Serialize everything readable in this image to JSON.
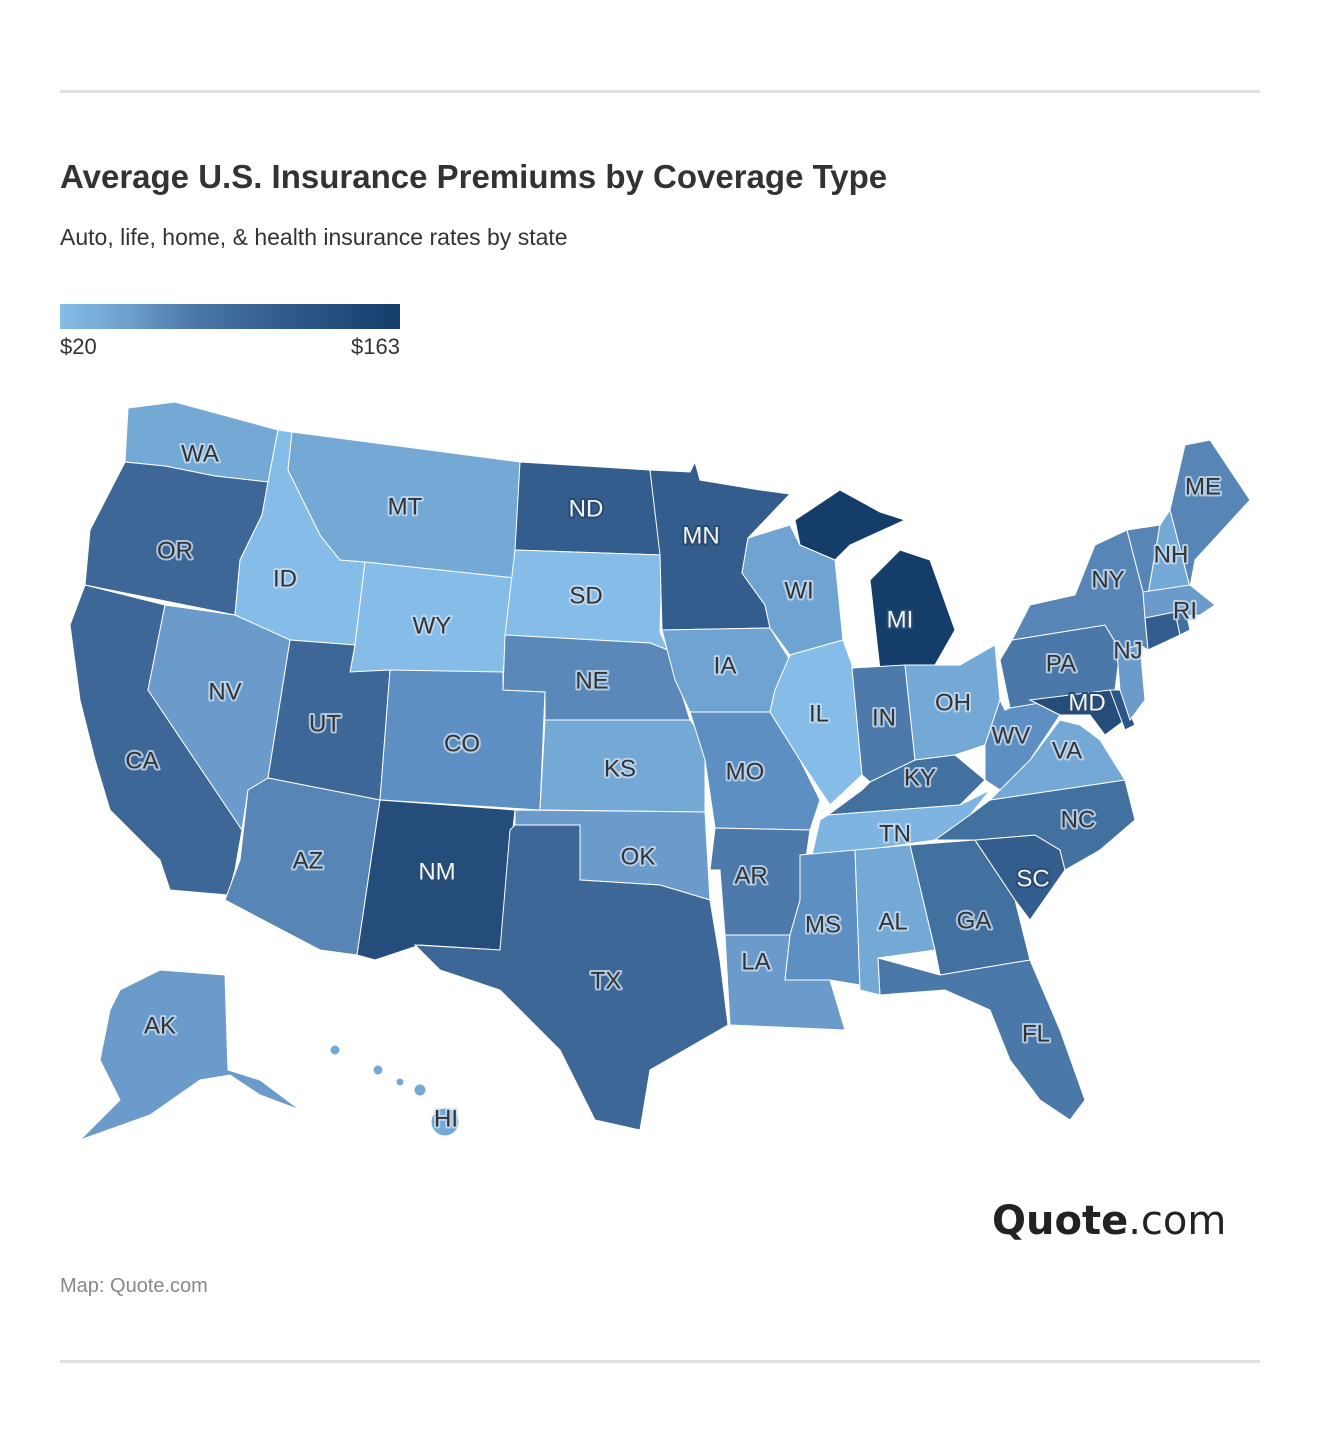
{
  "title": "Average U.S. Insurance Premiums by Coverage Type",
  "subtitle": "Auto, life, home, & health insurance rates by state",
  "legend": {
    "min_label": "$20",
    "max_label": "$163",
    "color_min": "#86bde8",
    "color_max": "#153d6a"
  },
  "logo": {
    "bold": "Quote",
    "rest": ".com"
  },
  "source": "Map: Quote.com",
  "chart_data": {
    "type": "choropleth",
    "region": "United States",
    "value_range": [
      20,
      163
    ],
    "states": [
      {
        "code": "WA",
        "color": "#74a9d6"
      },
      {
        "code": "OR",
        "color": "#3d6796"
      },
      {
        "code": "CA",
        "color": "#3d6796"
      },
      {
        "code": "ID",
        "color": "#86bde8"
      },
      {
        "code": "MT",
        "color": "#74a9d6"
      },
      {
        "code": "WY",
        "color": "#86bde8"
      },
      {
        "code": "NV",
        "color": "#6a9bcb"
      },
      {
        "code": "UT",
        "color": "#3d6796"
      },
      {
        "code": "AZ",
        "color": "#5685b6"
      },
      {
        "code": "CO",
        "color": "#5e8fc2"
      },
      {
        "code": "NM",
        "color": "#244d7c"
      },
      {
        "code": "ND",
        "color": "#335d8d"
      },
      {
        "code": "SD",
        "color": "#86bde8"
      },
      {
        "code": "NE",
        "color": "#5a89b9"
      },
      {
        "code": "KS",
        "color": "#74a9d6"
      },
      {
        "code": "OK",
        "color": "#6a9bcb"
      },
      {
        "code": "TX",
        "color": "#3d6796"
      },
      {
        "code": "MN",
        "color": "#335d8d"
      },
      {
        "code": "IA",
        "color": "#6fa3d2"
      },
      {
        "code": "MO",
        "color": "#5e8fc2"
      },
      {
        "code": "AR",
        "color": "#4d7aab"
      },
      {
        "code": "LA",
        "color": "#6a9bcb"
      },
      {
        "code": "WI",
        "color": "#6fa3d2"
      },
      {
        "code": "IL",
        "color": "#86bde8"
      },
      {
        "code": "MI",
        "color": "#153d6a"
      },
      {
        "code": "IN",
        "color": "#4d7aab"
      },
      {
        "code": "OH",
        "color": "#74a9d6"
      },
      {
        "code": "KY",
        "color": "#42709f"
      },
      {
        "code": "TN",
        "color": "#7eb4e1"
      },
      {
        "code": "MS",
        "color": "#5e8fc2"
      },
      {
        "code": "AL",
        "color": "#74a9d6"
      },
      {
        "code": "GA",
        "color": "#42709f"
      },
      {
        "code": "FL",
        "color": "#4a78a8"
      },
      {
        "code": "SC",
        "color": "#335d8d"
      },
      {
        "code": "NC",
        "color": "#42709f"
      },
      {
        "code": "VA",
        "color": "#74a9d6"
      },
      {
        "code": "WV",
        "color": "#5e8fc2"
      },
      {
        "code": "PA",
        "color": "#4a78a8"
      },
      {
        "code": "MD",
        "color": "#244d7c"
      },
      {
        "code": "DE",
        "color": "#2c5685"
      },
      {
        "code": "NJ",
        "color": "#6a9bcb"
      },
      {
        "code": "NY",
        "color": "#5685b6"
      },
      {
        "code": "VT",
        "color": "#5685b6"
      },
      {
        "code": "NH",
        "color": "#74a9d6"
      },
      {
        "code": "ME",
        "color": "#5685b6"
      },
      {
        "code": "MA",
        "color": "#6a9bcb"
      },
      {
        "code": "CT",
        "color": "#335d8d"
      },
      {
        "code": "RI",
        "color": "#42709f"
      },
      {
        "code": "AK",
        "color": "#6a9bcb"
      },
      {
        "code": "HI",
        "color": "#74a9d6"
      }
    ]
  }
}
